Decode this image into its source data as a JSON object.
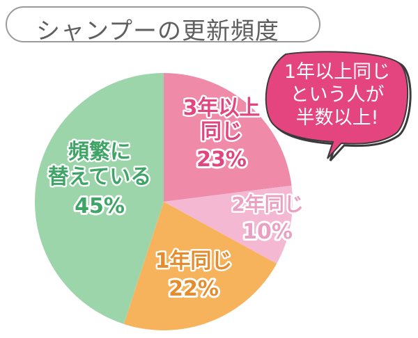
{
  "title": "シャンプーの更新頻度",
  "callout": {
    "lines": [
      "1年以上同じ",
      "という人が",
      "半数以上!"
    ],
    "fill": "#e5457f",
    "text_color": "#ffffff"
  },
  "chart_data": {
    "type": "pie",
    "title": "シャンプーの更新頻度",
    "start_angle_deg": 0,
    "direction": "clockwise",
    "slices": [
      {
        "label_lines": [
          "3年以上",
          "同じ"
        ],
        "value": 23,
        "value_label": "23%",
        "color": "#ef8ba8",
        "text_color": "#e1467e"
      },
      {
        "label_lines": [
          "2年同じ"
        ],
        "value": 10,
        "value_label": "10%",
        "color": "#f5b8d2",
        "text_color": "#eaa0c2"
      },
      {
        "label_lines": [
          "1年同じ"
        ],
        "value": 22,
        "value_label": "22%",
        "color": "#f7b35c",
        "text_color": "#e68c2c"
      },
      {
        "label_lines": [
          "頻繁に",
          "替えている"
        ],
        "value": 45,
        "value_label": "45%",
        "color": "#9dd5ab",
        "text_color": "#3fa566"
      }
    ]
  }
}
